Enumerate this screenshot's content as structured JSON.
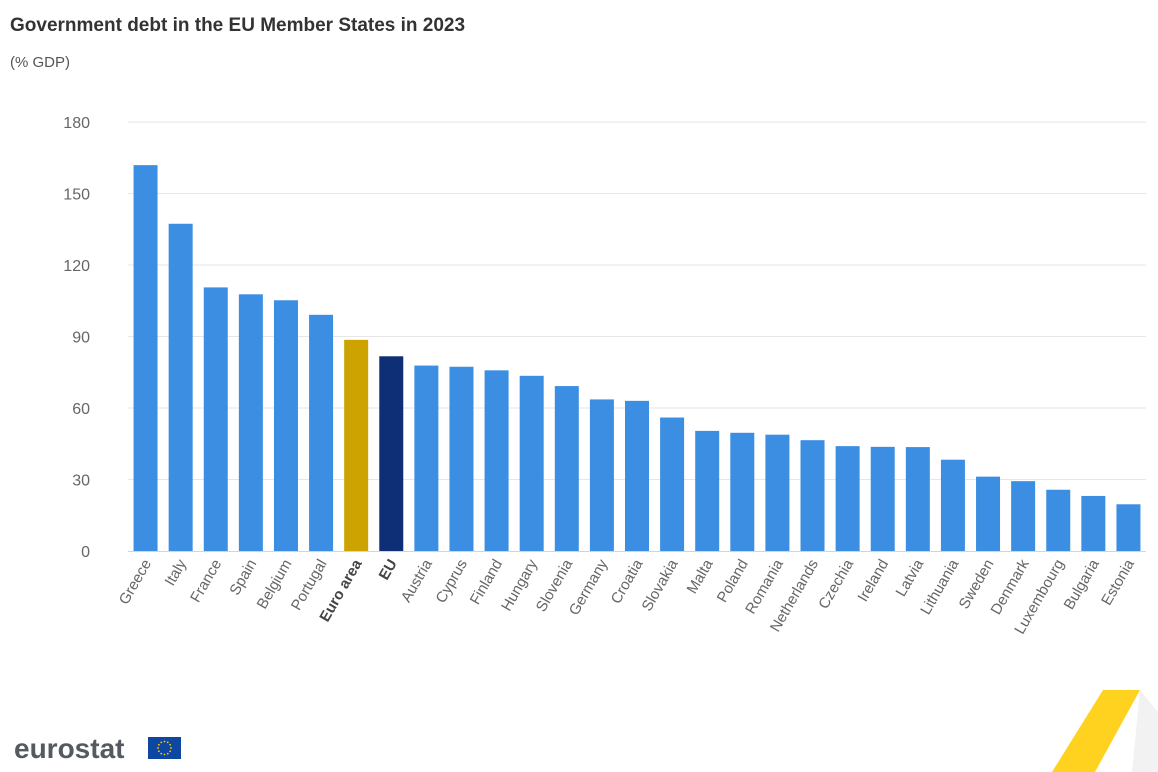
{
  "chart_data": {
    "type": "bar",
    "title": "Government debt in the EU Member States in 2023",
    "subtitle": "(% GDP)",
    "xlabel": "",
    "ylabel": "",
    "ylim": [
      0,
      180
    ],
    "yticks": [
      0,
      30,
      60,
      90,
      120,
      150,
      180
    ],
    "grid": true,
    "categories": [
      "Greece",
      "Italy",
      "France",
      "Spain",
      "Belgium",
      "Portugal",
      "Euro area",
      "EU",
      "Austria",
      "Cyprus",
      "Finland",
      "Hungary",
      "Slovenia",
      "Germany",
      "Croatia",
      "Slovakia",
      "Malta",
      "Poland",
      "Romania",
      "Netherlands",
      "Czechia",
      "Ireland",
      "Latvia",
      "Lithuania",
      "Sweden",
      "Denmark",
      "Luxembourg",
      "Bulgaria",
      "Estonia"
    ],
    "values": [
      161.9,
      137.3,
      110.6,
      107.7,
      105.2,
      99.1,
      88.6,
      81.7,
      77.8,
      77.3,
      75.8,
      73.5,
      69.2,
      63.6,
      63.0,
      56.0,
      50.4,
      49.6,
      48.8,
      46.5,
      44.0,
      43.7,
      43.6,
      38.3,
      31.2,
      29.3,
      25.7,
      23.1,
      19.6
    ],
    "highlight": {
      "Euro area": {
        "color": "#cca300",
        "bold": true
      },
      "EU": {
        "color": "#0e2f76",
        "bold": true
      }
    },
    "bar_color": "#3c8ee2"
  },
  "branding": {
    "logo_text": "eurostat"
  },
  "colors": {
    "grid": "#e6e6e6",
    "axis": "#d4d4d4",
    "accent_yellow": "#ffcc00"
  }
}
